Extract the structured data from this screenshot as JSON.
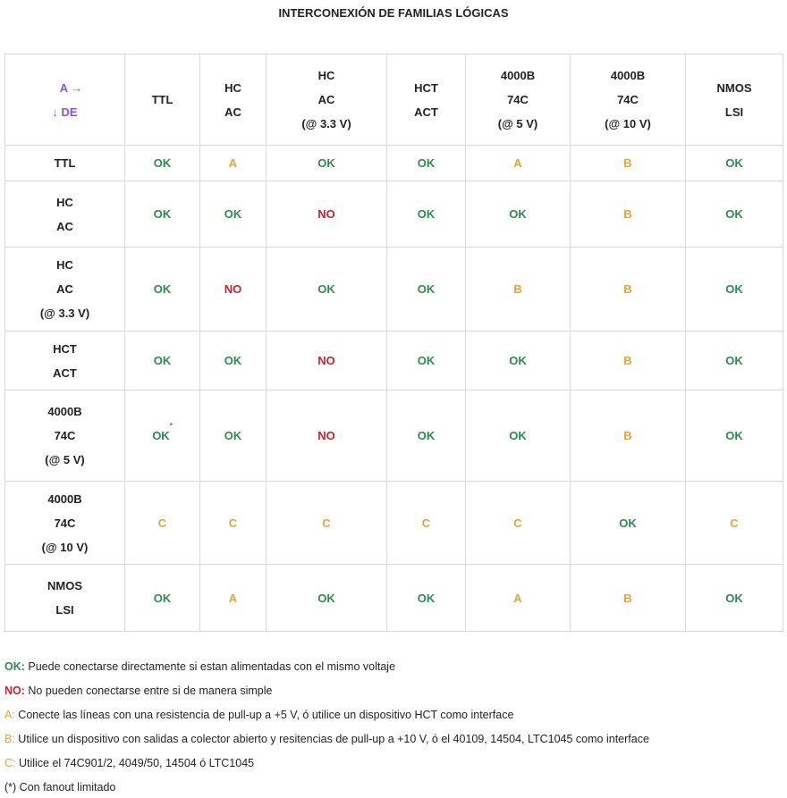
{
  "title": "INTERCONEXIÓN DE FAMILIAS LÓGICAS",
  "corner": {
    "to_label": "A →",
    "from_label": "↓ DE"
  },
  "columns": [
    [
      "TTL"
    ],
    [
      "HC",
      "AC"
    ],
    [
      "HC",
      "AC",
      "(@ 3.3 V)"
    ],
    [
      "HCT",
      "ACT"
    ],
    [
      "4000B",
      "74C",
      "(@ 5 V)"
    ],
    [
      "4000B",
      "74C",
      "(@ 10 V)"
    ],
    [
      "NMOS",
      "LSI"
    ]
  ],
  "rows": [
    {
      "header": [
        "TTL"
      ],
      "cells": [
        "OK",
        "A",
        "OK",
        "OK",
        "A",
        "B",
        "OK"
      ]
    },
    {
      "header": [
        "HC",
        "AC"
      ],
      "cells": [
        "OK",
        "OK",
        "NO",
        "OK",
        "OK",
        "B",
        "OK"
      ]
    },
    {
      "header": [
        "HC",
        "AC",
        "(@ 3.3 V)"
      ],
      "cells": [
        "OK",
        "NO",
        "OK",
        "OK",
        "B",
        "B",
        "OK"
      ]
    },
    {
      "header": [
        "HCT",
        "ACT"
      ],
      "cells": [
        "OK",
        "OK",
        "NO",
        "OK",
        "OK",
        "B",
        "OK"
      ]
    },
    {
      "header": [
        "4000B",
        "74C",
        "(@ 5 V)"
      ],
      "cells": [
        "OK",
        "OK",
        "NO",
        "OK",
        "OK",
        "B",
        "OK"
      ],
      "footnote_cell": 0,
      "footnote_mark": "*"
    },
    {
      "header": [
        "4000B",
        "74C",
        "(@ 10 V)"
      ],
      "cells": [
        "C",
        "C",
        "C",
        "C",
        "C",
        "OK",
        "C"
      ]
    },
    {
      "header": [
        "NMOS",
        "LSI"
      ],
      "cells": [
        "OK",
        "A",
        "OK",
        "OK",
        "A",
        "B",
        "OK"
      ]
    }
  ],
  "colors": {
    "ok": "#2e8b4e",
    "no": "#d0202a",
    "abc": "#f0a030",
    "corner": "#8a4ff0"
  },
  "legend": [
    {
      "key": "OK:",
      "text": " Puede conectarse directamente si estan alimentadas con el mismo voltaje",
      "cls": "ok"
    },
    {
      "key": "NO:",
      "text": " No pueden conectarse entre si de manera simple",
      "cls": "no"
    },
    {
      "key": "A:",
      "text": " Conecte las líneas con una resistencia de pull-up a +5 V, ó utilice un dispositivo HCT como interface",
      "cls": "a"
    },
    {
      "key": "B:",
      "text": " Utilice un dispositivo con salidas a colector abierto y resitencias de pull-up a +10 V, ó el 40109, 14504, LTC1045 como interface",
      "cls": "b"
    },
    {
      "key": "C:",
      "text": " Utilice el 74C901/2, 4049/50, 14504 ó LTC1045",
      "cls": "c"
    },
    {
      "key": "",
      "text": "(*) Con fanout limitado",
      "cls": "plain"
    }
  ]
}
